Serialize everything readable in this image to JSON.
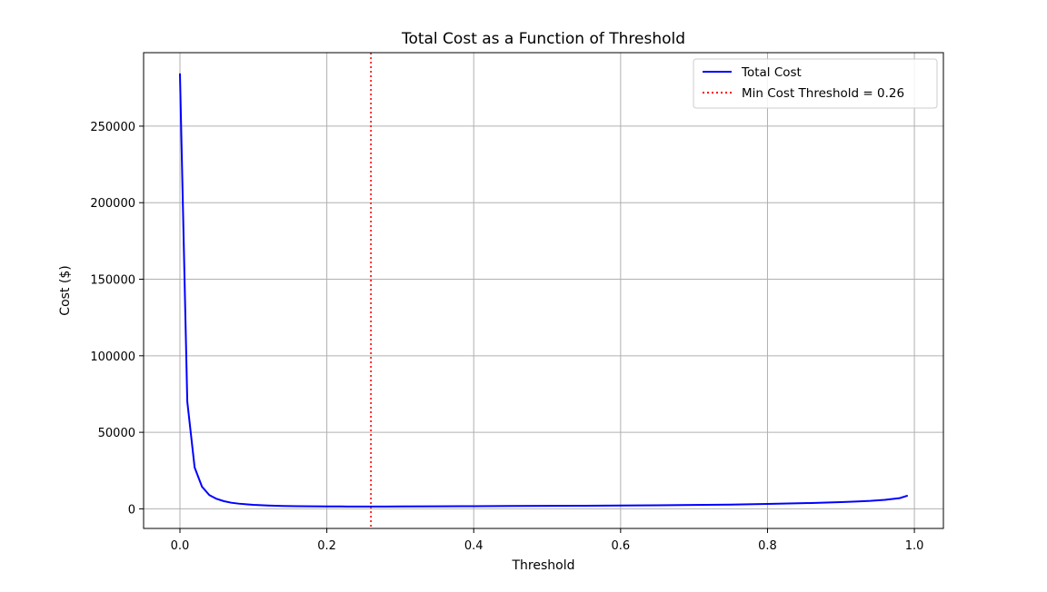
{
  "chart_data": {
    "type": "line",
    "title": "Total Cost as a Function of Threshold",
    "xlabel": "Threshold",
    "ylabel": "Cost ($)",
    "xlim": [
      -0.0495,
      1.0395
    ],
    "ylim": [
      -12800,
      298000
    ],
    "x_ticks": [
      0.0,
      0.2,
      0.4,
      0.6,
      0.8,
      1.0
    ],
    "x_tick_labels": [
      "0.0",
      "0.2",
      "0.4",
      "0.6",
      "0.8",
      "1.0"
    ],
    "y_ticks": [
      0,
      50000,
      100000,
      150000,
      200000,
      250000
    ],
    "y_tick_labels": [
      "0",
      "50000",
      "100000",
      "150000",
      "200000",
      "250000"
    ],
    "grid": true,
    "legend_position": "top-right",
    "series": [
      {
        "name": "Total Cost",
        "color": "#0000ff",
        "style": "solid",
        "x": [
          0.0,
          0.01,
          0.02,
          0.03,
          0.04,
          0.05,
          0.06,
          0.07,
          0.08,
          0.09,
          0.1,
          0.12,
          0.14,
          0.16,
          0.18,
          0.2,
          0.22,
          0.24,
          0.26,
          0.28,
          0.3,
          0.35,
          0.4,
          0.45,
          0.5,
          0.55,
          0.6,
          0.65,
          0.7,
          0.75,
          0.8,
          0.85,
          0.88,
          0.9,
          0.92,
          0.94,
          0.96,
          0.98,
          0.99
        ],
        "y": [
          284000,
          70000,
          27000,
          14500,
          9000,
          6500,
          5000,
          4000,
          3400,
          3000,
          2600,
          2200,
          1900,
          1750,
          1650,
          1600,
          1550,
          1520,
          1500,
          1520,
          1550,
          1650,
          1750,
          1850,
          1950,
          2050,
          2200,
          2350,
          2550,
          2800,
          3200,
          3700,
          4100,
          4400,
          4800,
          5200,
          5900,
          7000,
          8500
        ]
      }
    ],
    "reference_lines": [
      {
        "name": "Min Cost Threshold = 0.26",
        "orientation": "vertical",
        "x": 0.26,
        "color": "#ff0000",
        "style": "dotted"
      }
    ],
    "legend": [
      {
        "label": "Total Cost",
        "color": "#0000ff",
        "style": "solid"
      },
      {
        "label": "Min Cost Threshold = 0.26",
        "color": "#ff0000",
        "style": "dotted"
      }
    ]
  }
}
